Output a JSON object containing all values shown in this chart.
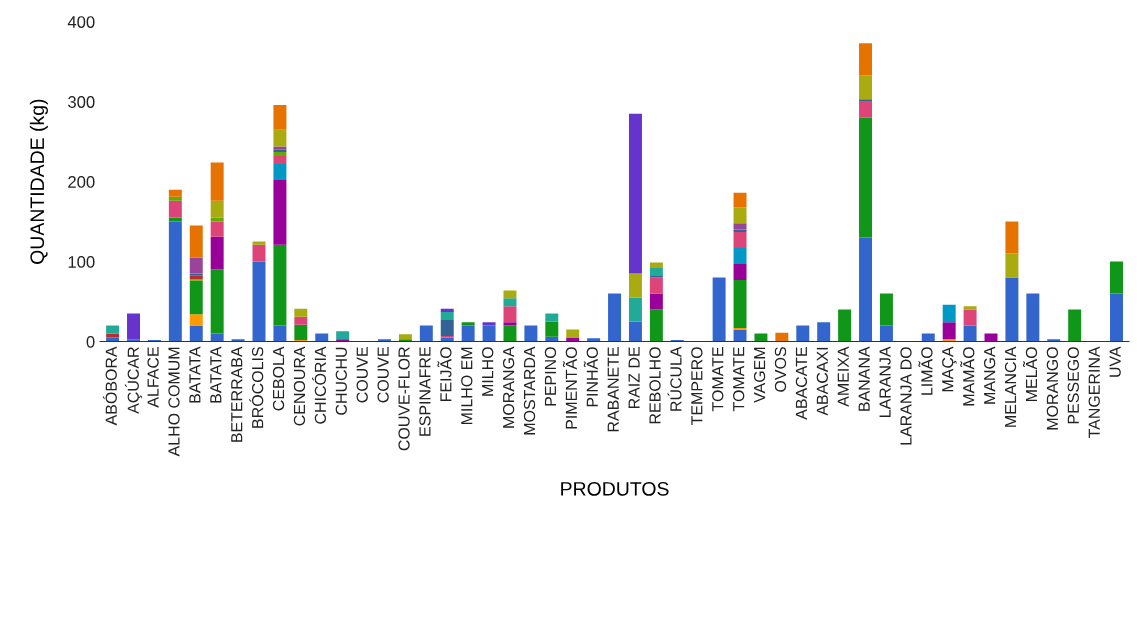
{
  "chart_data": {
    "type": "bar",
    "stacked": true,
    "xlabel": "PRODUTOS",
    "ylabel": "QUANTIDADE (kg)",
    "ylim": [
      0,
      400
    ],
    "yticks": [
      0,
      100,
      200,
      300,
      400
    ],
    "grid": false,
    "categories": [
      "ABÓBORA",
      "AÇÚCAR",
      "ALFACE",
      "ALHO COMUM",
      "BATATA",
      "BATATA",
      "BETERRABA",
      "BRÓCOLIS",
      "CEBOLA",
      "CENOURA",
      "CHICÓRIA",
      "CHUCHU",
      "COUVE",
      "COUVE",
      "COUVE-FLOR",
      "ESPINAFRE",
      "FEIJÃO",
      "MILHO EM",
      "MILHO",
      "MORANGA",
      "MOSTARDA",
      "PEPINO",
      "PIMENTÃO",
      "PINHÃO",
      "RABANETE",
      "RAIZ DE",
      "REBOLHO",
      "RÚCULA",
      "TEMPERO",
      "TOMATE",
      "TOMATE",
      "VAGEM",
      "OVOS",
      "ABACATE",
      "ABACAXI",
      "AMEIXA",
      "BANANA",
      "LARANJA",
      "LARANJA DO",
      "LIMÃO",
      "MAÇA",
      "MAMÃO",
      "MANGA",
      "MELANCIA",
      "MELÃO",
      "MORANGO",
      "PESSEGO",
      "TANGERINA",
      "UVA"
    ],
    "series": [
      {
        "color": "#3366cc",
        "values": [
          5,
          3,
          2,
          150,
          20,
          10,
          3,
          100,
          20,
          0,
          10,
          0,
          0,
          3,
          0,
          20,
          5,
          20,
          20,
          0,
          20,
          6,
          0,
          4,
          60,
          25,
          0,
          2,
          0,
          80,
          15,
          0,
          0,
          20,
          24,
          0,
          130,
          20,
          0,
          10,
          0,
          20,
          0,
          80,
          60,
          3,
          0,
          0,
          60
        ]
      },
      {
        "color": "#ff9900",
        "values": [
          0,
          0,
          0,
          0,
          14,
          0,
          0,
          0,
          0,
          2,
          0,
          0,
          0,
          0,
          0,
          0,
          0,
          0,
          0,
          0,
          0,
          0,
          0,
          0,
          0,
          0,
          0,
          0,
          0,
          0,
          2,
          0,
          0,
          0,
          0,
          0,
          0,
          0,
          0,
          0,
          3,
          0,
          0,
          0,
          0,
          0,
          0,
          0,
          0
        ]
      },
      {
        "color": "#109618",
        "values": [
          0,
          0,
          0,
          5,
          42,
          80,
          0,
          0,
          101,
          19,
          0,
          0,
          0,
          0,
          3,
          0,
          0,
          4,
          0,
          20,
          0,
          19,
          0,
          0,
          0,
          0,
          40,
          0,
          0,
          0,
          60,
          10,
          0,
          0,
          0,
          40,
          150,
          40,
          0,
          0,
          0,
          0,
          0,
          0,
          0,
          0,
          40,
          0,
          40
        ]
      },
      {
        "color": "#990099",
        "values": [
          0,
          0,
          0,
          0,
          0,
          41,
          0,
          0,
          81,
          0,
          0,
          3,
          0,
          0,
          0,
          0,
          0,
          0,
          0,
          4,
          0,
          0,
          5,
          0,
          0,
          0,
          20,
          0,
          0,
          0,
          20,
          0,
          0,
          0,
          0,
          0,
          0,
          0,
          0,
          0,
          21,
          0,
          10,
          0,
          0,
          0,
          0,
          0,
          0
        ]
      },
      {
        "color": "#0099c6",
        "values": [
          0,
          0,
          0,
          0,
          0,
          0,
          0,
          0,
          20,
          0,
          0,
          0,
          0,
          0,
          0,
          0,
          0,
          0,
          0,
          0,
          0,
          0,
          0,
          0,
          0,
          0,
          0,
          0,
          0,
          0,
          20,
          0,
          0,
          0,
          0,
          0,
          0,
          0,
          0,
          0,
          22,
          0,
          0,
          0,
          0,
          0,
          0,
          0,
          0
        ]
      },
      {
        "color": "#dd4477",
        "values": [
          0,
          0,
          0,
          21,
          0,
          19,
          0,
          21,
          10,
          10,
          0,
          0,
          0,
          0,
          0,
          0,
          2,
          0,
          0,
          20,
          0,
          0,
          0,
          0,
          0,
          0,
          20,
          0,
          0,
          0,
          20,
          0,
          0,
          0,
          0,
          0,
          20,
          0,
          0,
          0,
          0,
          20,
          0,
          0,
          0,
          0,
          0,
          0,
          0
        ]
      },
      {
        "color": "#66aa00",
        "values": [
          0,
          0,
          0,
          5,
          2,
          5,
          0,
          0,
          5,
          0,
          0,
          0,
          0,
          0,
          0,
          0,
          0,
          0,
          0,
          0,
          0,
          0,
          0,
          0,
          0,
          0,
          0,
          0,
          0,
          0,
          0,
          0,
          0,
          0,
          0,
          0,
          0,
          0,
          0,
          0,
          0,
          0,
          0,
          0,
          0,
          0,
          0,
          0,
          0
        ]
      },
      {
        "color": "#b82e2e",
        "values": [
          5,
          0,
          0,
          0,
          5,
          0,
          0,
          0,
          0,
          0,
          0,
          0,
          0,
          0,
          0,
          0,
          0,
          0,
          0,
          0,
          0,
          0,
          0,
          0,
          0,
          0,
          0,
          0,
          0,
          0,
          0,
          0,
          0,
          0,
          0,
          0,
          0,
          0,
          0,
          0,
          0,
          0,
          0,
          0,
          0,
          0,
          0,
          0,
          0
        ]
      },
      {
        "color": "#316395",
        "values": [
          0,
          0,
          0,
          0,
          2,
          0,
          0,
          0,
          3,
          0,
          0,
          0,
          0,
          0,
          0,
          0,
          20,
          0,
          0,
          0,
          0,
          0,
          0,
          0,
          0,
          0,
          2,
          0,
          0,
          0,
          3,
          0,
          0,
          0,
          0,
          0,
          3,
          0,
          0,
          0,
          0,
          0,
          0,
          0,
          0,
          0,
          0,
          0,
          0
        ]
      },
      {
        "color": "#994499",
        "values": [
          0,
          0,
          0,
          0,
          20,
          0,
          0,
          0,
          4,
          0,
          0,
          0,
          0,
          0,
          0,
          0,
          0,
          0,
          0,
          0,
          0,
          0,
          0,
          0,
          0,
          0,
          0,
          0,
          0,
          0,
          8,
          0,
          0,
          0,
          0,
          0,
          0,
          0,
          0,
          0,
          0,
          0,
          0,
          0,
          0,
          0,
          0,
          0,
          0
        ]
      },
      {
        "color": "#22aa99",
        "values": [
          10,
          0,
          0,
          0,
          0,
          0,
          0,
          0,
          0,
          0,
          0,
          10,
          0,
          0,
          0,
          0,
          10,
          0,
          0,
          10,
          0,
          10,
          0,
          0,
          0,
          30,
          10,
          0,
          0,
          0,
          0,
          0,
          0,
          0,
          0,
          0,
          0,
          0,
          0,
          0,
          0,
          0,
          0,
          0,
          0,
          0,
          0,
          0,
          0
        ]
      },
      {
        "color": "#aaaa11",
        "values": [
          0,
          0,
          0,
          0,
          0,
          21,
          0,
          4,
          21,
          10,
          0,
          0,
          0,
          0,
          6,
          0,
          0,
          0,
          0,
          10,
          0,
          0,
          10,
          0,
          0,
          30,
          7,
          0,
          0,
          0,
          20,
          0,
          0,
          0,
          0,
          0,
          30,
          0,
          0,
          0,
          0,
          4,
          0,
          30,
          0,
          0,
          0,
          0,
          0
        ]
      },
      {
        "color": "#6633cc",
        "values": [
          0,
          32,
          0,
          0,
          0,
          0,
          0,
          0,
          0,
          0,
          0,
          0,
          0,
          0,
          0,
          0,
          4,
          0,
          4,
          0,
          0,
          0,
          0,
          0,
          0,
          200,
          0,
          0,
          0,
          0,
          0,
          0,
          0,
          0,
          0,
          0,
          0,
          0,
          0,
          0,
          0,
          0,
          0,
          0,
          0,
          0,
          0,
          0,
          0
        ]
      },
      {
        "color": "#e67300",
        "values": [
          0,
          0,
          0,
          9,
          40,
          48,
          0,
          0,
          31,
          0,
          0,
          0,
          0,
          0,
          0,
          0,
          0,
          0,
          0,
          0,
          0,
          0,
          0,
          0,
          0,
          0,
          0,
          0,
          0,
          0,
          18,
          0,
          11,
          0,
          0,
          0,
          40,
          0,
          0,
          0,
          0,
          0,
          0,
          40,
          0,
          0,
          0,
          0,
          0
        ]
      }
    ]
  }
}
